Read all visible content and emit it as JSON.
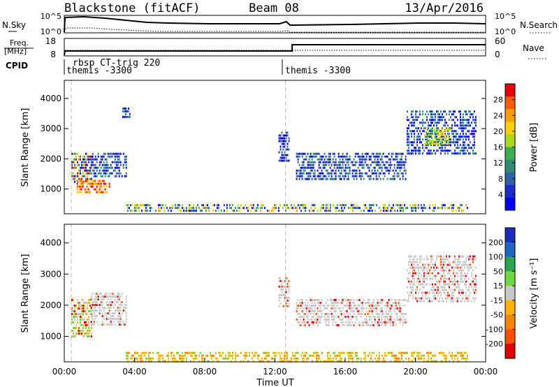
{
  "header": {
    "station": "Blackstone (fitACF)",
    "beam": "Beam 08",
    "date": "13/Apr/2016"
  },
  "top_panels": {
    "nsky_label": "N.Sky",
    "nsky_ticks": [
      "10^5",
      "10^0"
    ],
    "nsearch_label": "N.Search",
    "nsearch_ticks": [
      "10^5",
      "10^0"
    ],
    "freq_label": "Freq.",
    "freq_unit": "[MHz]",
    "freq_ticks": [
      "18",
      "8"
    ],
    "nave_label": "Nave",
    "nave_ticks": [
      "60",
      "0"
    ],
    "cpid_label": "CPID",
    "cpid_entries": [
      {
        "text": "rbsp CT-trig 220",
        "start_hour": 0.3
      },
      {
        "text": "themis -3300",
        "start_hour": 0.3
      },
      {
        "text": "themis -3300",
        "start_hour": 12.6
      }
    ]
  },
  "chart_data": [
    {
      "type": "heatmap",
      "title": "Power",
      "ylabel": "Slant Range [km]",
      "xlabel": "",
      "xlim": [
        0,
        24
      ],
      "ylim": [
        180,
        4600
      ],
      "yticks": [
        "1000",
        "2000",
        "3000",
        "4000"
      ],
      "colorbar": {
        "label": "Power [dB]",
        "ticks": [
          "28",
          "24",
          "20",
          "16",
          "12",
          "8",
          "4"
        ],
        "colors": [
          "#e8000b",
          "#ff5a00",
          "#ff9d00",
          "#ffd000",
          "#a8d820",
          "#38b050",
          "#308a70",
          "#3060a8",
          "#1c2ad0",
          "#0000ff"
        ]
      },
      "regions": [
        {
          "t0": 0.4,
          "t1": 1.6,
          "r0": 1200,
          "r1": 2200,
          "level": "mixed-high"
        },
        {
          "t0": 0.7,
          "t1": 2.6,
          "r0": 850,
          "r1": 1300,
          "level": "high"
        },
        {
          "t0": 1.5,
          "t1": 3.6,
          "r0": 1350,
          "r1": 2200,
          "level": "low"
        },
        {
          "t0": 3.3,
          "t1": 3.8,
          "r0": 3300,
          "r1": 3700,
          "level": "low"
        },
        {
          "t0": 3.5,
          "t1": 23.0,
          "r0": 180,
          "r1": 500,
          "level": "mixed-low"
        },
        {
          "t0": 12.2,
          "t1": 12.8,
          "r0": 1900,
          "r1": 2900,
          "level": "low"
        },
        {
          "t0": 13.2,
          "t1": 19.5,
          "r0": 1300,
          "r1": 2200,
          "level": "low"
        },
        {
          "t0": 19.5,
          "t1": 23.5,
          "r0": 2100,
          "r1": 3600,
          "level": "low"
        },
        {
          "t0": 20.5,
          "t1": 22.0,
          "r0": 2400,
          "r1": 3000,
          "level": "mid"
        }
      ]
    },
    {
      "type": "heatmap",
      "title": "Velocity",
      "ylabel": "Slant Range [km]",
      "xlabel": "Time UT",
      "xlim": [
        0,
        24
      ],
      "ylim": [
        180,
        4600
      ],
      "xticks": [
        "00:00",
        "04:00",
        "08:00",
        "12:00",
        "16:00",
        "20:00",
        "00:00"
      ],
      "yticks": [
        "1000",
        "2000",
        "3000",
        "4000"
      ],
      "colorbar": {
        "label": "Velocity [m s⁻¹]",
        "ticks": [
          "200",
          "100",
          "50",
          "15",
          "-15",
          "-50",
          "-100",
          "-200"
        ],
        "colors": [
          "#1b2cc1",
          "#1f65c8",
          "#2ba550",
          "#6fd840",
          "#c8c8c8",
          "#ffb000",
          "#ff8200",
          "#ff5000",
          "#e00000"
        ]
      },
      "regions": [
        {
          "t0": 0.4,
          "t1": 1.6,
          "r0": 900,
          "r1": 2200,
          "level": "mixed-neg"
        },
        {
          "t0": 1.5,
          "t1": 3.6,
          "r0": 1300,
          "r1": 2400,
          "level": "ground"
        },
        {
          "t0": 3.5,
          "t1": 23.0,
          "r0": 180,
          "r1": 500,
          "level": "neg"
        },
        {
          "t0": 12.2,
          "t1": 12.8,
          "r0": 1900,
          "r1": 2900,
          "level": "ground"
        },
        {
          "t0": 13.2,
          "t1": 19.5,
          "r0": 1300,
          "r1": 2200,
          "level": "ground"
        },
        {
          "t0": 19.5,
          "t1": 23.5,
          "r0": 2100,
          "r1": 3600,
          "level": "ground"
        }
      ]
    }
  ]
}
